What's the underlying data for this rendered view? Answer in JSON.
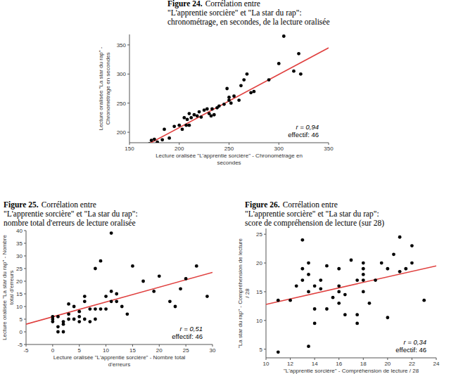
{
  "chart_data": [
    {
      "type": "scatter",
      "figure_label": "Figure 24.",
      "title_lines": [
        "Corrélation entre",
        "\"L'apprentie sorcière\" et \"La star du rap\":",
        "chronométrage, en secondes, de la lecture oralisée"
      ],
      "xlabel": [
        "Lecture oralisée \"L'apprentie sorcière\" - Chronométrage en",
        "secondes"
      ],
      "ylabel": [
        "Lecture oralisée \"La star du rap\" -",
        "Chronométrage en secondes"
      ],
      "annotations": [
        "r = 0,94",
        "effectif: 46"
      ],
      "xlim": [
        150,
        350
      ],
      "ylim": [
        182,
        368
      ],
      "xticks": [
        150,
        200,
        250,
        300,
        350
      ],
      "yticks": [
        200,
        250,
        300,
        350
      ],
      "color": "#000000",
      "marker": "circle",
      "x": [
        170,
        172,
        175,
        178,
        183,
        185,
        190,
        195,
        200,
        203,
        205,
        207,
        208,
        210,
        210,
        212,
        215,
        218,
        220,
        222,
        225,
        228,
        230,
        232,
        233,
        235,
        238,
        240,
        245,
        248,
        250,
        250,
        252,
        255,
        260,
        262,
        265,
        268,
        272,
        275,
        290,
        300,
        305,
        315,
        320,
        322
      ],
      "y": [
        180,
        186,
        188,
        183,
        187,
        205,
        190,
        210,
        212,
        205,
        225,
        212,
        222,
        212,
        232,
        225,
        230,
        228,
        235,
        226,
        238,
        240,
        232,
        228,
        240,
        230,
        242,
        245,
        248,
        275,
        255,
        260,
        250,
        262,
        255,
        280,
        290,
        300,
        268,
        270,
        290,
        318,
        365,
        305,
        335,
        300
      ],
      "fit_line": {
        "x": [
          165,
          350
        ],
        "y": [
          176,
          345
        ],
        "color": "#e0403f"
      }
    },
    {
      "type": "scatter",
      "figure_label": "Figure 25.",
      "title_lines": [
        "Corrélation entre",
        "\"L'apprentie sorcière\" et \"La star du rap\":",
        "nombre total d'erreurs de lecture oralisée"
      ],
      "xlabel": [
        "Lecture oralisée \"L'apprentie sorcière\" - Nombre total",
        "d'erreurs"
      ],
      "ylabel": [
        "Lecture oralisée \"La star du rap\" - Nombre",
        "total d'erreurs"
      ],
      "annotations": [
        "r = 0,51",
        "effectif: 46"
      ],
      "xlim": [
        -5,
        30
      ],
      "ylim": [
        -5,
        40
      ],
      "xticks": [
        -5,
        0,
        5,
        10,
        15,
        20,
        25,
        30
      ],
      "yticks": [
        -5,
        0,
        5,
        10,
        15,
        20,
        25,
        30,
        35,
        40
      ],
      "color": "#000000",
      "marker": "circle",
      "x": [
        0,
        0,
        0,
        1,
        1,
        1,
        2,
        2,
        2,
        3,
        3,
        3,
        4,
        4,
        5,
        5,
        5,
        6,
        6,
        6,
        7,
        7,
        8,
        8,
        8,
        9,
        9,
        10,
        10,
        11,
        11,
        11,
        12,
        12,
        14,
        15,
        17,
        19,
        20,
        22,
        23,
        24,
        25,
        27,
        29,
        13
      ],
      "y": [
        4,
        5,
        6,
        0,
        2,
        6,
        0,
        3,
        4,
        5,
        7,
        11,
        10,
        5,
        8,
        4,
        6,
        5,
        12,
        14,
        4,
        9,
        5,
        25,
        9,
        28,
        9,
        14,
        9,
        16,
        39,
        12,
        15,
        12,
        7,
        26,
        20,
        16,
        22,
        12,
        10,
        17,
        21,
        26,
        14,
        10
      ],
      "fit_line": {
        "x": [
          -5,
          30
        ],
        "y": [
          3,
          23.5
        ],
        "color": "#e0403f"
      }
    },
    {
      "type": "scatter",
      "figure_label": "Figure 26.",
      "title_lines": [
        "Corrélation entre",
        "\"L'apprentie sorcière\" et \"La star du rap\":",
        "score de compréhension de lecture (sur 28)"
      ],
      "xlabel": [
        "\"L'apprentie sorcière\" - Compréhension de lecture / 28"
      ],
      "ylabel": [
        "\"La star du rap\" - Compréhension de lecture",
        "/ 28"
      ],
      "annotations": [
        "r = 0,34",
        "effectif: 46"
      ],
      "xlim": [
        10,
        24
      ],
      "ylim": [
        3.5,
        26
      ],
      "xticks": [
        10,
        12,
        14,
        16,
        18,
        20,
        22,
        24
      ],
      "yticks": [
        5,
        10,
        15,
        20,
        25
      ],
      "color": "#000000",
      "marker": "circle",
      "x": [
        11,
        11,
        12,
        12.5,
        13,
        13,
        13,
        13.5,
        13.5,
        13.5,
        13.5,
        14,
        14,
        14,
        14.5,
        14.5,
        15,
        15.5,
        16,
        16,
        16,
        16,
        16.5,
        16.5,
        17,
        17.5,
        17.5,
        17.5,
        18,
        18,
        18,
        18,
        18,
        18.5,
        19,
        19.5,
        20,
        20,
        20.5,
        21,
        21,
        21.5,
        22,
        22,
        23,
        15
      ],
      "y": [
        4.5,
        13.5,
        13.5,
        16,
        17,
        19,
        24,
        18,
        5.5,
        15,
        20,
        16,
        12,
        9.5,
        17,
        15.5,
        12,
        14,
        19,
        16,
        15,
        13,
        14.5,
        11,
        20.5,
        17,
        11,
        9.5,
        17,
        18,
        19,
        20,
        15,
        13,
        17,
        20,
        10.5,
        19,
        21.5,
        24.5,
        18.5,
        19,
        20,
        23,
        13.5,
        19.5
      ],
      "fit_line": {
        "x": [
          10,
          24
        ],
        "y": [
          12.8,
          19.5
        ],
        "color": "#e0403f"
      }
    }
  ]
}
